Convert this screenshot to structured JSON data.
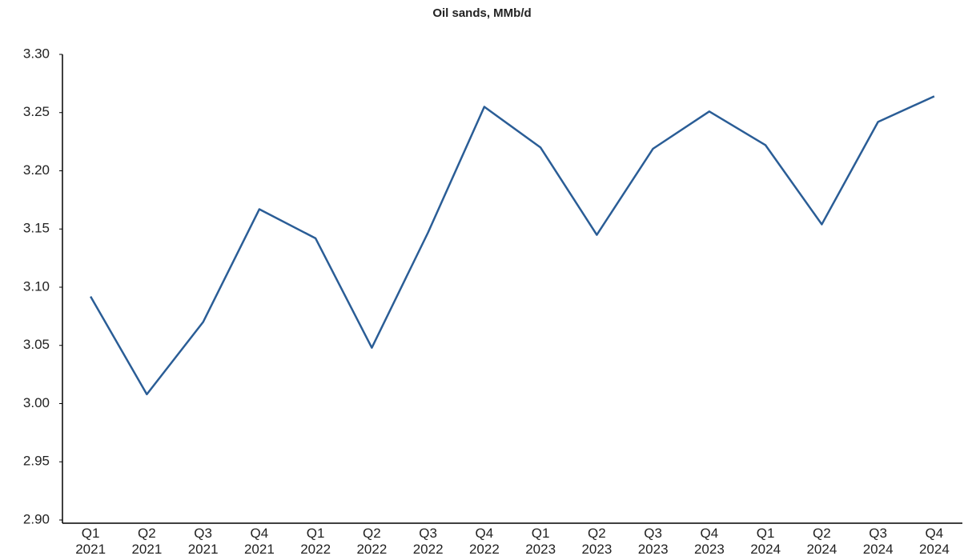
{
  "chart_data": {
    "type": "line",
    "title": "Oil sands, MMb/d",
    "categories": [
      "Q1 2021",
      "Q2 2021",
      "Q3 2021",
      "Q4 2021",
      "Q1 2022",
      "Q2 2022",
      "Q3 2022",
      "Q4 2022",
      "Q1 2023",
      "Q2 2023",
      "Q3 2023",
      "Q4 2023",
      "Q1 2024",
      "Q2 2024",
      "Q3 2024",
      "Q4 2024"
    ],
    "series": [
      {
        "name": "Oil sands",
        "color": "#2a5d96",
        "values": [
          3.092,
          3.008,
          3.07,
          3.167,
          3.142,
          3.048,
          3.147,
          3.255,
          3.22,
          3.145,
          3.219,
          3.251,
          3.222,
          3.154,
          3.242,
          3.264
        ]
      }
    ],
    "ylim": [
      2.9,
      3.3
    ],
    "yticks": [
      {
        "value": 2.9,
        "label": "2.90"
      },
      2.95,
      {
        "value": 3.0,
        "label": "3.00"
      },
      3.05,
      {
        "value": 3.1,
        "label": "3.10"
      },
      3.15,
      {
        "value": 3.2,
        "label": "3.20"
      },
      3.25,
      {
        "value": 3.3,
        "label": "3.30"
      }
    ],
    "grid": false
  }
}
